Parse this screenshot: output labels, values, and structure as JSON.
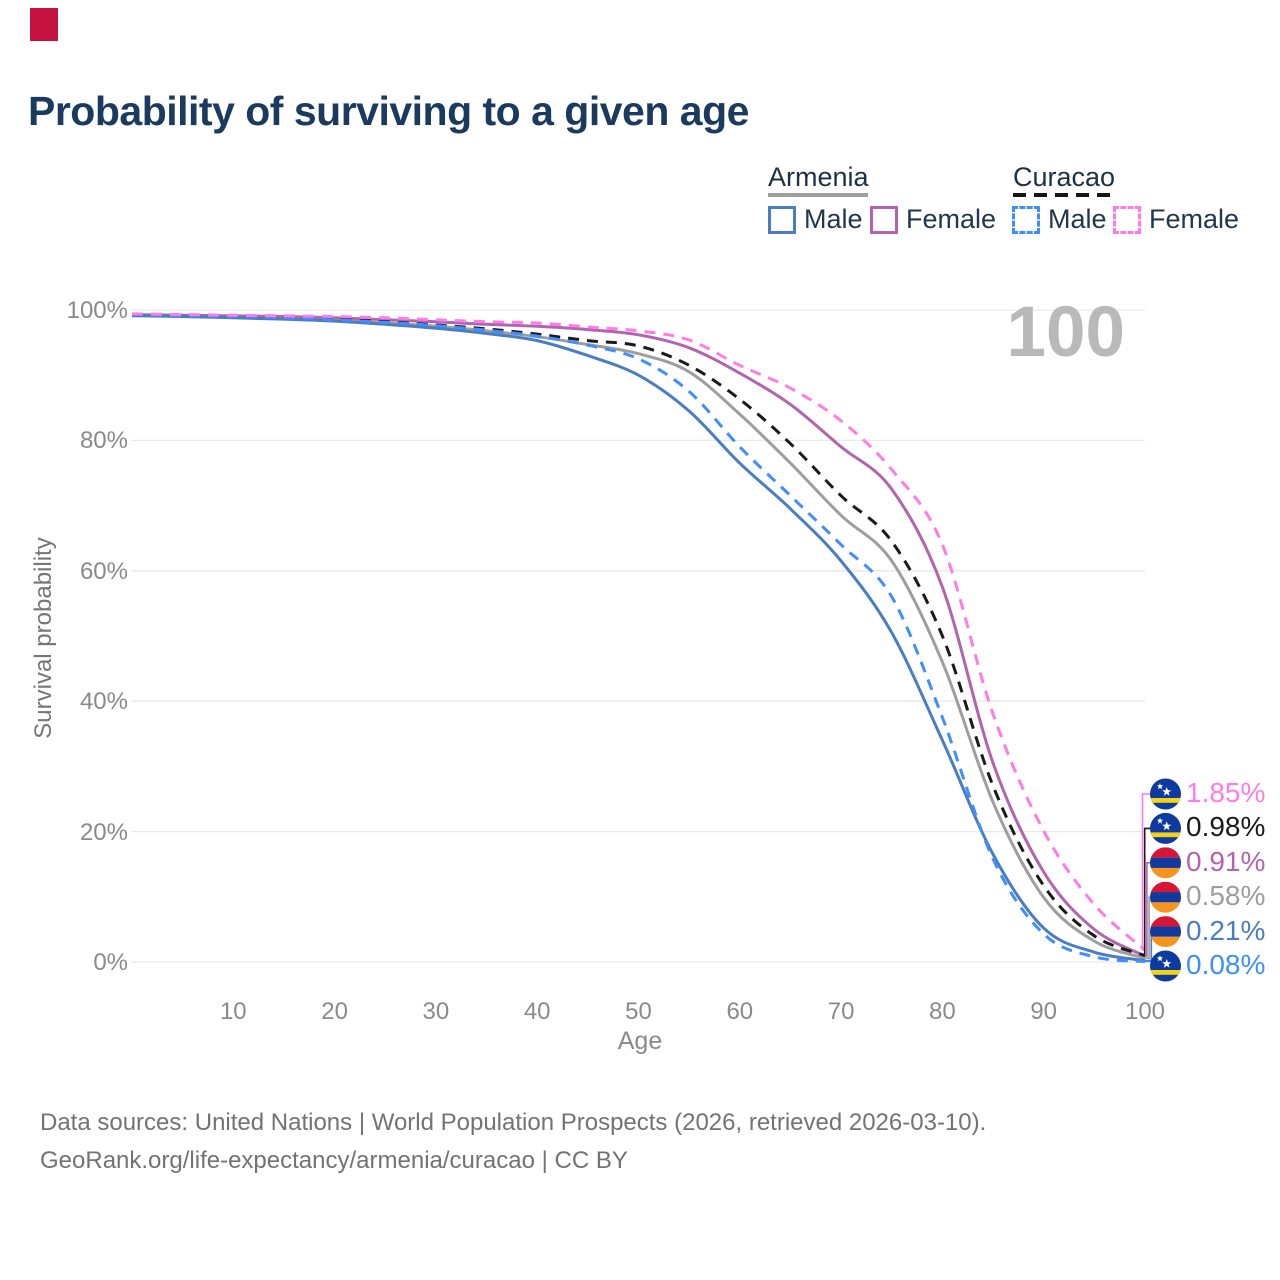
{
  "marker": {
    "color": "#c51240"
  },
  "title": "Probability of surviving to a given age",
  "watermark": "100",
  "legend": {
    "groups": [
      {
        "label": "Armenia",
        "underline_style": "solid",
        "underline_color": "#9e9e9e",
        "items": [
          {
            "label": "Male",
            "color": "#4a7dc2",
            "dashed": false
          },
          {
            "label": "Female",
            "color": "#b264ae",
            "dashed": false
          }
        ]
      },
      {
        "label": "Curacao",
        "underline_style": "dashed",
        "underline_color": "#1a1a1a",
        "items": [
          {
            "label": "Male",
            "color": "#3e8efd",
            "dashed": true
          },
          {
            "label": "Female",
            "color": "#ff7ce8",
            "dashed": true
          }
        ]
      }
    ]
  },
  "chart_data": {
    "type": "line",
    "title": "Probability of surviving to a given age",
    "xlabel": "Age",
    "ylabel": "Survival probability",
    "x_ticks": [
      10,
      20,
      30,
      40,
      50,
      60,
      70,
      80,
      90,
      100
    ],
    "y_tick_labels": [
      "0%",
      "20%",
      "40%",
      "60%",
      "80%",
      "100%"
    ],
    "y_ticks": [
      0,
      20,
      40,
      60,
      80,
      100
    ],
    "ylim": [
      0,
      100
    ],
    "xlim": [
      0,
      100
    ],
    "grid": "horizontal",
    "legend_position": "top-right",
    "x": [
      0,
      5,
      10,
      15,
      20,
      25,
      30,
      35,
      40,
      45,
      50,
      55,
      60,
      65,
      70,
      75,
      80,
      85,
      90,
      95,
      100
    ],
    "series": [
      {
        "name": "Armenia Total",
        "color": "#9e9e9e",
        "dash": "solid",
        "values": [
          99.1,
          99.0,
          98.9,
          98.7,
          98.4,
          98.0,
          97.5,
          96.8,
          95.9,
          94.7,
          93.3,
          90.5,
          84.0,
          76.5,
          68.5,
          61.5,
          46.0,
          24.5,
          9.9,
          3.2,
          0.58
        ]
      },
      {
        "name": "Armenia Female",
        "color": "#b264ae",
        "dash": "solid",
        "values": [
          99.3,
          99.2,
          99.1,
          99.0,
          98.8,
          98.5,
          98.2,
          97.8,
          97.5,
          97.0,
          96.2,
          94.2,
          90.3,
          85.5,
          79.0,
          72.5,
          57.5,
          30.5,
          13.8,
          5.0,
          0.91
        ]
      },
      {
        "name": "Armenia Male",
        "color": "#4a7dc2",
        "dash": "solid",
        "values": [
          99.2,
          99.0,
          98.8,
          98.6,
          98.3,
          97.8,
          97.2,
          96.4,
          95.3,
          93.0,
          90.0,
          84.5,
          76.5,
          69.5,
          61.5,
          50.5,
          34.0,
          16.5,
          5.2,
          1.5,
          0.21
        ]
      },
      {
        "name": "Curacao Total",
        "color": "#1a1a1a",
        "dash": "dashed",
        "values": [
          99.3,
          99.2,
          99.1,
          98.9,
          98.6,
          98.2,
          97.7,
          97.1,
          96.3,
          95.3,
          94.5,
          91.5,
          86.3,
          79.5,
          71.5,
          64.5,
          50.0,
          27.0,
          11.7,
          4.0,
          0.98
        ]
      },
      {
        "name": "Curacao Male",
        "color": "#3e8efd",
        "dash": "dashed",
        "values": [
          99.3,
          99.1,
          99.0,
          98.8,
          98.5,
          98.1,
          97.6,
          96.9,
          96.0,
          94.6,
          92.5,
          87.5,
          79.0,
          71.5,
          64.0,
          56.0,
          37.5,
          15.8,
          4.3,
          0.8,
          0.08
        ]
      },
      {
        "name": "Curacao Female",
        "color": "#ff7ce8",
        "dash": "dashed",
        "values": [
          99.4,
          99.3,
          99.2,
          99.1,
          99.0,
          98.8,
          98.5,
          98.2,
          98.0,
          97.4,
          96.8,
          95.4,
          91.5,
          88.0,
          83.0,
          75.5,
          64.0,
          38.0,
          20.1,
          8.8,
          1.85
        ]
      }
    ],
    "end_labels": [
      {
        "value": "1.85%",
        "color": "#ff7ce8",
        "flag": "curacao",
        "series": "Curacao Female"
      },
      {
        "value": "0.98%",
        "color": "#1a1a1a",
        "flag": "curacao",
        "series": "Curacao Total"
      },
      {
        "value": "0.91%",
        "color": "#b264ae",
        "flag": "armenia",
        "series": "Armenia Female"
      },
      {
        "value": "0.58%",
        "color": "#9e9e9e",
        "flag": "armenia",
        "series": "Armenia Total"
      },
      {
        "value": "0.21%",
        "color": "#4a7dc2",
        "flag": "armenia",
        "series": "Armenia Male"
      },
      {
        "value": "0.08%",
        "color": "#3e8efd",
        "flag": "curacao",
        "series": "Curacao Male"
      }
    ],
    "flag_colors": {
      "armenia": {
        "red": "#d71635",
        "blue": "#123a9e",
        "orange": "#f7941e"
      },
      "curacao": {
        "blue": "#0d3a9e",
        "yellow": "#f5d216",
        "star": "#ffffff"
      }
    },
    "gridline_color": "#e9e9e9"
  },
  "footer": {
    "line1": "Data sources: United Nations | World Population Prospects (2026, retrieved 2026-03-10).",
    "line2": "GeoRank.org/life-expectancy/armenia/curacao | CC BY"
  }
}
